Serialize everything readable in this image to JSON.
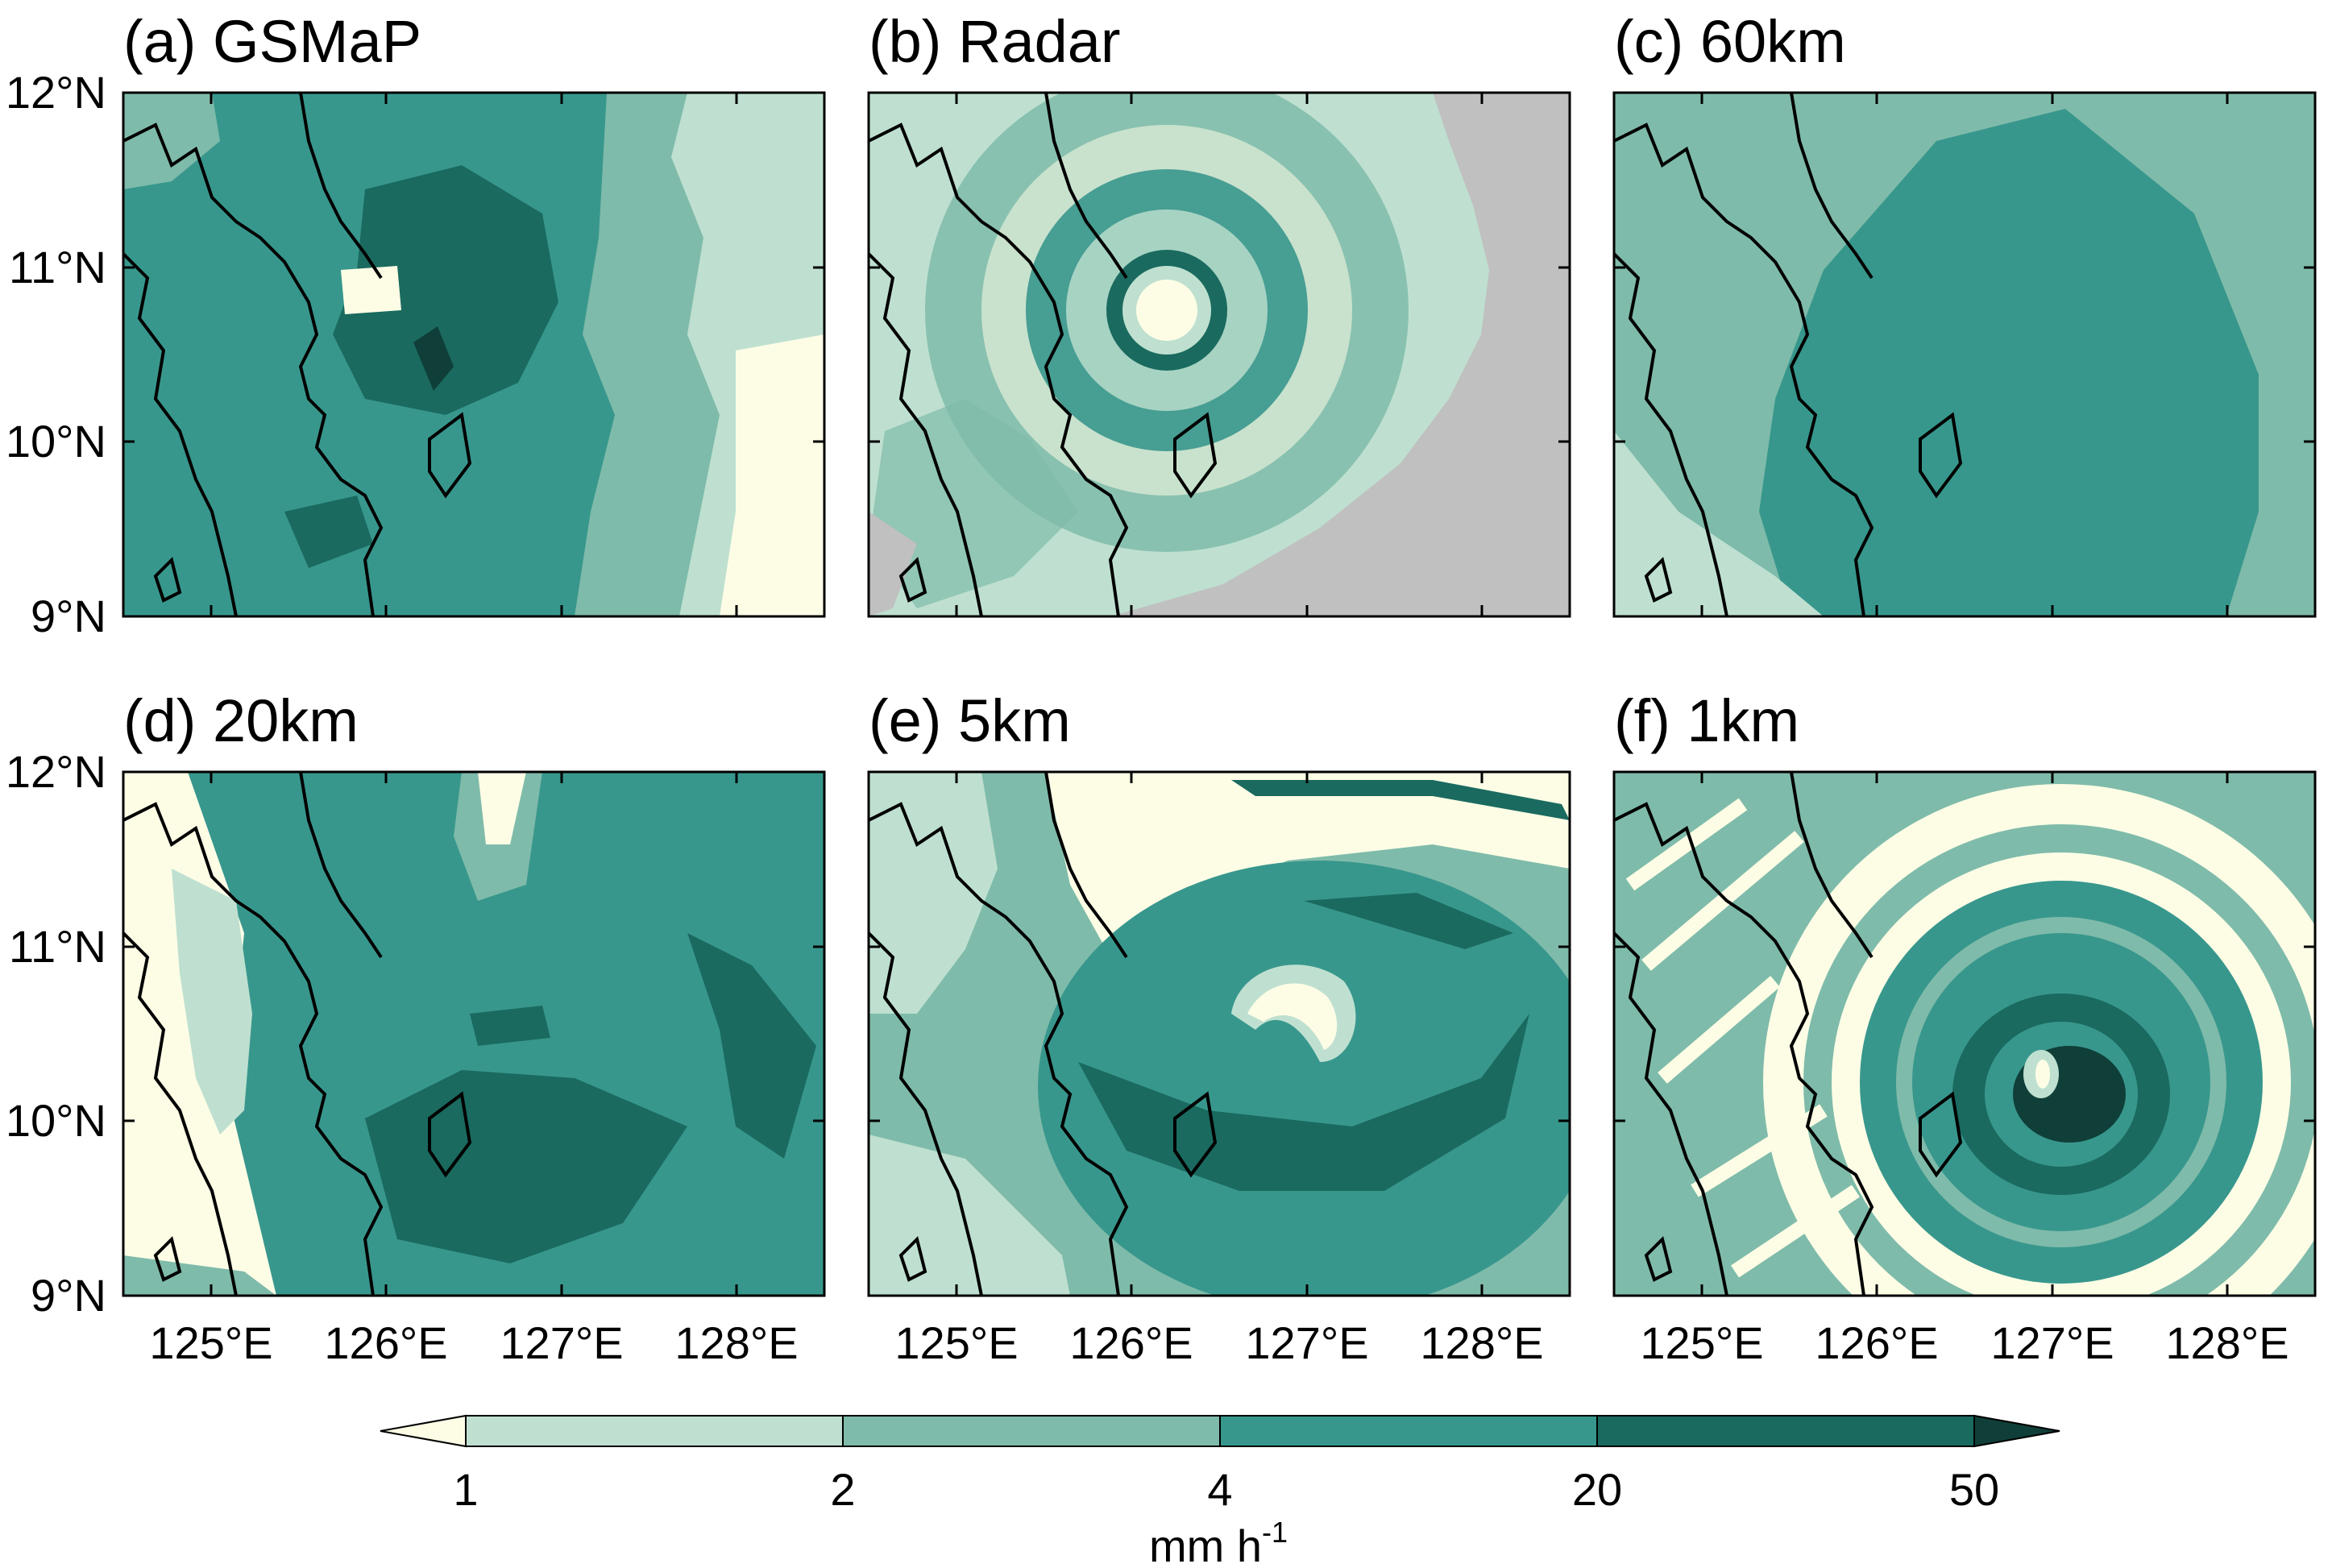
{
  "figure": {
    "panels": [
      {
        "id": "a",
        "title": "(a) GSMaP"
      },
      {
        "id": "b",
        "title": "(b) Radar"
      },
      {
        "id": "c",
        "title": "(c) 60km"
      },
      {
        "id": "d",
        "title": "(d) 20km"
      },
      {
        "id": "e",
        "title": "(e) 5km"
      },
      {
        "id": "f",
        "title": "(f) 1km"
      }
    ],
    "lat_ticks": [
      "12°N",
      "11°N",
      "10°N",
      "9°N"
    ],
    "lon_ticks": [
      "125°E",
      "126°E",
      "127°E",
      "128°E"
    ],
    "colorbar": {
      "ticks": [
        "1",
        "2",
        "4",
        "20",
        "50"
      ],
      "unit_base": "mm h",
      "unit_exp": "-1"
    }
  },
  "colors": {
    "lt1": "#fdfde6",
    "c1_2": "#bfe0d0",
    "c2_4": "#7fbbaa",
    "c4_20": "#38978d",
    "c20_50": "#1a6a5f",
    "gt50": "#0f3f38",
    "radar_missing": "#c0c0c0",
    "coast": "#000000"
  },
  "chart_data": {
    "type": "heatmap",
    "lon_range": [
      124.5,
      128.5
    ],
    "lat_range": [
      9,
      12
    ],
    "lon_ticks": [
      125,
      126,
      127,
      128
    ],
    "lat_ticks": [
      12,
      11,
      10,
      9
    ],
    "colorbar_levels": [
      1,
      2,
      4,
      20,
      50
    ],
    "colorbar_extend": "both",
    "unit": "mm h-1",
    "panel_titles": [
      "(a) GSMaP",
      "(b) Radar",
      "(c) 60km",
      "(d) 20km",
      "(e) 5km",
      "(f) 1km"
    ]
  }
}
